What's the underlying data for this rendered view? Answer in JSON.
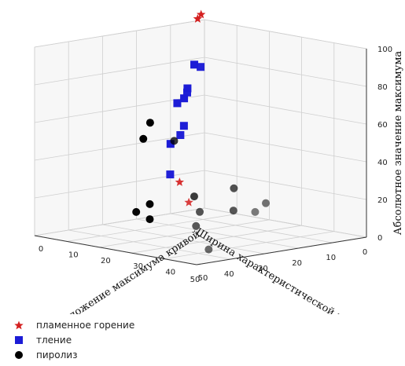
{
  "chart_data": {
    "type": "scatter3d",
    "x_label": "Ширина характеристической кривой",
    "y_label": "Положение максимума кривой",
    "z_label": "Абсолютное значение максимума",
    "x_ticks": [
      0,
      10,
      20,
      30,
      40,
      50
    ],
    "y_ticks": [
      0,
      10,
      20,
      30,
      40,
      50
    ],
    "z_ticks": [
      0,
      20,
      40,
      60,
      80,
      100
    ],
    "x_range": [
      0,
      50
    ],
    "y_range": [
      0,
      50
    ],
    "z_range": [
      0,
      100
    ],
    "grid": true,
    "legend_position": "bottom-left",
    "series": [
      {
        "name": "пламенное горение",
        "marker": "star",
        "color": "#d42020",
        "points": [
          {
            "x": 1,
            "y": 0,
            "z": 103
          },
          {
            "x": 2,
            "y": 0,
            "z": 101
          },
          {
            "x": 14,
            "y": 7,
            "z": 20
          },
          {
            "x": 17,
            "y": 13,
            "z": 12
          }
        ]
      },
      {
        "name": "тление",
        "marker": "square",
        "color": "#1c1cd6",
        "points": [
          {
            "x": 3,
            "y": 0,
            "z": 77
          },
          {
            "x": 5,
            "y": 0,
            "z": 65
          },
          {
            "x": 6,
            "y": 0,
            "z": 60
          },
          {
            "x": 7,
            "y": 2,
            "z": 64
          },
          {
            "x": 4,
            "y": 3,
            "z": 77
          },
          {
            "x": 8,
            "y": 0,
            "z": 58
          },
          {
            "x": 7,
            "y": 1,
            "z": 46
          },
          {
            "x": 9,
            "y": 2,
            "z": 42
          },
          {
            "x": 10,
            "y": 0,
            "z": 37
          },
          {
            "x": 12,
            "y": 2,
            "z": 22
          }
        ]
      },
      {
        "name": "пиролиз",
        "marker": "circle",
        "color": "#000000",
        "points": [
          {
            "x": 16,
            "y": 0,
            "z": 50
          },
          {
            "x": 18,
            "y": 0,
            "z": 42
          },
          {
            "x": 18,
            "y": 2,
            "z": 8
          },
          {
            "x": 22,
            "y": 2,
            "z": 5
          },
          {
            "x": 18,
            "y": 2,
            "z": 0
          },
          {
            "x": 28,
            "y": 20,
            "z": 50
          },
          {
            "x": 24,
            "y": 22,
            "z": 20
          },
          {
            "x": 19,
            "y": 29,
            "z": 25
          },
          {
            "x": 22,
            "y": 32,
            "z": 15
          },
          {
            "x": 30,
            "y": 30,
            "z": 16
          },
          {
            "x": 33,
            "y": 32,
            "z": 10
          },
          {
            "x": 22,
            "y": 42,
            "z": 22
          },
          {
            "x": 28,
            "y": 45,
            "z": 20
          },
          {
            "x": 35,
            "y": 38,
            "z": 0
          }
        ]
      }
    ]
  }
}
